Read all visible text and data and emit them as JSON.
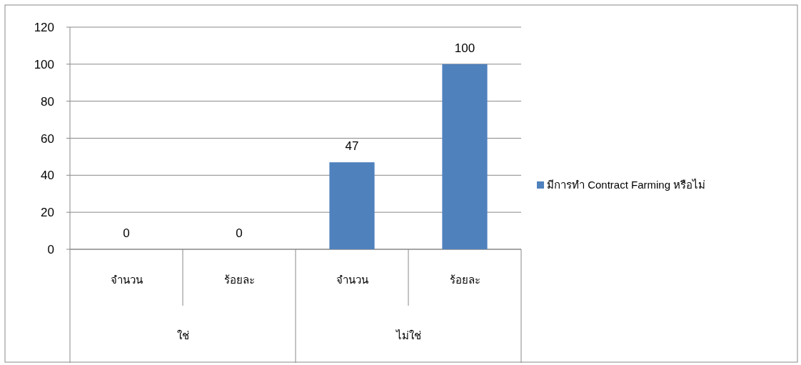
{
  "chart_data": {
    "type": "bar",
    "categories": [
      "จำนวน",
      "ร้อยละ",
      "จำนวน",
      "ร้อยละ"
    ],
    "series": [
      {
        "name": "มีการทำ Contract Farming หรือไม่",
        "color": "#4f81bd",
        "values": [
          0,
          0,
          47,
          100
        ]
      }
    ],
    "ylim": [
      0,
      120
    ],
    "yticks": [
      0,
      20,
      40,
      60,
      80,
      100,
      120
    ],
    "grid": "y",
    "legend": "right",
    "data_labels": true,
    "annotations": [
      "ใช่",
      "ไม่ใช่"
    ]
  }
}
